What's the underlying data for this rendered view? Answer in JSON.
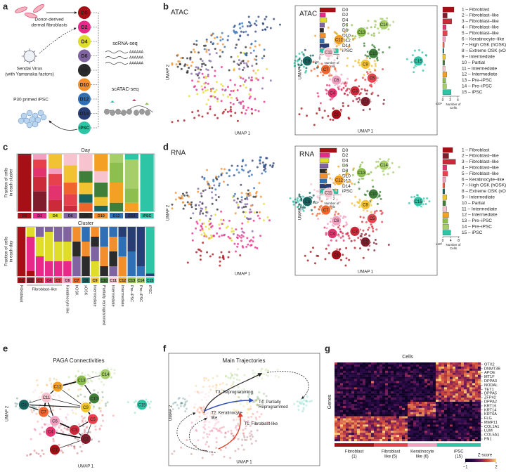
{
  "figure": {
    "panel_letters": [
      "a",
      "b",
      "c",
      "d",
      "e",
      "f",
      "g"
    ],
    "days": [
      "D0",
      "D2",
      "D4",
      "D6",
      "D8",
      "D10",
      "D12",
      "D14",
      "iPSC"
    ],
    "day_colors": [
      "#a50f15",
      "#e7298a",
      "#e0dd2a",
      "#8064a2",
      "#2b2b2b",
      "#f28e2b",
      "#2f6fb5",
      "#283d74",
      "#2ec4a6"
    ],
    "clusters": [
      "C1",
      "C2",
      "C3",
      "C4",
      "C5",
      "C6",
      "C7",
      "C8",
      "C9",
      "C10",
      "C11",
      "C12",
      "C13",
      "C14",
      "C15"
    ],
    "cluster_colors": [
      "#a50f15",
      "#7f1d2d",
      "#cb2a3a",
      "#e3336f",
      "#e8414e",
      "#f2a0c0",
      "#f0642e",
      "#17635f",
      "#f1c232",
      "#3f7f3a",
      "#f7c3cf",
      "#f4a024",
      "#8dbf4f",
      "#a6cf6a",
      "#2ec4a6"
    ],
    "cluster_legend": [
      "1 – Fibroblast",
      "2 – Fibroblast–like",
      "3 – Fibroblast–like",
      "4 – Fibroblast–like",
      "5 – Fibroblast–like",
      "6 – Keratinocyte–like",
      "7 – High OSK (hOSK)",
      "8 – Extreme OSK (xOSK)",
      "9 – Intermediate",
      "10 – Partial",
      "11 – Intermediate",
      "12 – Intermediate",
      "13 – Pre–iPSC",
      "14 – Pre–iPSC",
      "15 – iPSC"
    ],
    "umap_x_label": "UMAP 1",
    "umap_y_label": "UMAP 2",
    "number_of_cells_label": [
      "Number of",
      "Cells"
    ]
  },
  "panel_a": {
    "fibroblast_label": [
      "Donor-derived",
      "dermal fibroblasts"
    ],
    "virus_label": [
      "Sendai Virus",
      "(with Yamanaka factors)"
    ],
    "scrna_label": "scRNA-seq",
    "scatac_label": "scATAC-seq",
    "ipsc_label": "P30 primed iPSC",
    "poly_a": "AAAAAA"
  },
  "panel_b": {
    "left_title": "ATAC",
    "right_title": "ATAC",
    "day_counts": {
      "values": [
        3.6,
        1.3,
        1.6,
        1.1,
        0.9,
        1.3,
        1.0,
        2.1,
        4.2
      ],
      "xlim": [
        0,
        4.5
      ],
      "xticks": [
        0,
        2,
        4
      ],
      "scale_label": "x10⁴"
    },
    "cluster_counts": {
      "values": [
        3.0,
        1.2,
        2.4,
        0.9,
        1.2,
        0.7,
        0.4,
        0.3,
        0.7,
        0.5,
        0.6,
        1.1,
        0.8,
        1.0,
        2.2
      ],
      "xlim": [
        0,
        4.5
      ],
      "xticks": [
        0,
        2,
        4
      ],
      "scale_label": "x10⁴"
    }
  },
  "panel_c": {
    "day_chart": {
      "title": "Day",
      "y_label": [
        "Fraction of cells",
        "in each cluster"
      ],
      "ylim": [
        0,
        1
      ],
      "series": [
        {
          "values": [
            0.97,
            0,
            0,
            0,
            0,
            0,
            0,
            0,
            0
          ]
        },
        {
          "values": [
            0.03,
            0.35,
            0,
            0,
            0,
            0,
            0,
            0,
            0
          ]
        },
        {
          "values": [
            0,
            0.25,
            0.2,
            0.1,
            0,
            0,
            0,
            0,
            0
          ]
        },
        {
          "values": [
            0,
            0.15,
            0.25,
            0,
            0,
            0,
            0,
            0,
            0
          ]
        },
        {
          "values": [
            0,
            0.15,
            0.2,
            0.2,
            0,
            0,
            0,
            0,
            0
          ]
        },
        {
          "values": [
            0,
            0.1,
            0.1,
            0,
            0,
            0,
            0,
            0,
            0
          ]
        },
        {
          "values": [
            0,
            0,
            0,
            0.2,
            0.15,
            0,
            0,
            0,
            0
          ]
        },
        {
          "values": [
            0,
            0,
            0,
            0,
            0.15,
            0.1,
            0,
            0,
            0
          ]
        },
        {
          "values": [
            0,
            0,
            0.25,
            0.3,
            0.2,
            0.15,
            0,
            0,
            0
          ]
        },
        {
          "values": [
            0,
            0,
            0,
            0,
            0.2,
            0.25,
            0.15,
            0,
            0
          ]
        },
        {
          "values": [
            0,
            0,
            0,
            0.2,
            0.3,
            0.2,
            0,
            0,
            0
          ]
        },
        {
          "values": [
            0,
            0,
            0,
            0,
            0,
            0.3,
            0.35,
            0.15,
            0
          ]
        },
        {
          "values": [
            0,
            0,
            0,
            0,
            0,
            0,
            0.35,
            0.25,
            0
          ]
        },
        {
          "values": [
            0,
            0,
            0,
            0,
            0,
            0,
            0.15,
            0.5,
            0
          ]
        },
        {
          "values": [
            0,
            0,
            0,
            0,
            0,
            0,
            0,
            0.1,
            1
          ]
        }
      ]
    },
    "cluster_chart": {
      "title": "Cluster",
      "y_label": [
        "Fraction of cells",
        "in each day"
      ],
      "ylim": [
        0,
        1
      ],
      "series": [
        {
          "values": [
            1,
            0.1,
            0,
            0,
            0,
            0,
            0,
            0,
            0,
            0,
            0,
            0,
            0,
            0,
            0
          ]
        },
        {
          "values": [
            0,
            0.7,
            0.4,
            0.3,
            0.3,
            0.3,
            0,
            0,
            0,
            0,
            0,
            0,
            0,
            0,
            0
          ]
        },
        {
          "values": [
            0,
            0.2,
            0.4,
            0.6,
            0.4,
            0.4,
            0,
            0,
            0.3,
            0,
            0,
            0,
            0,
            0,
            0
          ]
        },
        {
          "values": [
            0,
            0,
            0.2,
            0.1,
            0.3,
            0.3,
            0.4,
            0,
            0.3,
            0,
            0.2,
            0,
            0,
            0,
            0
          ]
        },
        {
          "values": [
            0,
            0,
            0,
            0,
            0,
            0,
            0.3,
            0.4,
            0.2,
            0.2,
            0.3,
            0,
            0,
            0,
            0
          ]
        },
        {
          "values": [
            0,
            0,
            0,
            0,
            0,
            0,
            0.3,
            0.3,
            0.2,
            0.4,
            0.3,
            0.4,
            0,
            0,
            0
          ]
        },
        {
          "values": [
            0,
            0,
            0,
            0,
            0,
            0,
            0,
            0.3,
            0,
            0.4,
            0.2,
            0.4,
            0.5,
            0.2,
            0
          ]
        },
        {
          "values": [
            0,
            0,
            0,
            0,
            0,
            0,
            0,
            0,
            0,
            0,
            0,
            0.2,
            0.5,
            0.8,
            0.05
          ]
        },
        {
          "values": [
            0,
            0,
            0,
            0,
            0,
            0,
            0,
            0,
            0,
            0,
            0,
            0,
            0,
            0,
            0.95
          ]
        }
      ],
      "annotations": [
        "Fibroblast",
        "Fibroblast–like",
        "Keratinocyte like",
        "hOSK",
        "xOSK",
        "Intermediate",
        "Partially reprogrammed",
        "Intermediate",
        "Intermediate",
        "Pre–iPSC",
        "Pre–iPSC",
        "iPSC"
      ]
    }
  },
  "panel_d": {
    "left_title": "RNA",
    "right_title": "RNA",
    "day_counts": {
      "values": [
        2.4,
        1.4,
        1.3,
        1.2,
        1.0,
        1.1,
        1.0,
        1.6,
        2.6
      ],
      "xlim": [
        0,
        2.8
      ],
      "xticks": [
        0,
        1,
        2
      ],
      "scale_label": "x10⁴"
    },
    "cluster_counts": {
      "values": [
        5,
        3,
        6.5,
        2,
        2.5,
        1.5,
        1,
        1,
        2,
        1.5,
        2,
        3,
        2.5,
        3,
        4
      ],
      "xlim": [
        0,
        8.5
      ],
      "xticks": [
        0,
        4,
        8
      ],
      "scale_label": "x10³"
    }
  },
  "panel_e": {
    "title": "PAGA Connectivities"
  },
  "panel_f": {
    "title": "Main Trajectories",
    "trajectories": [
      [
        "T1: Fibroblast-like"
      ],
      [
        "T2: Keratinocyte-",
        "like"
      ],
      [
        "T3: Reprogramming"
      ],
      [
        "T4: Partially",
        "Reprogrammed"
      ]
    ]
  },
  "panel_g": {
    "title": "Cells",
    "y_label": "Genes",
    "genes": [
      "OTX2",
      "DNMT3B",
      "APOE",
      "MT1F",
      "DPPA3",
      "NODAL",
      "TET1",
      "DPPA5",
      "ZFP42",
      "DPPA2",
      "KRT16",
      "KRT14",
      "KRT6A",
      "FLG",
      "MMP11",
      "COL1A1",
      "LUM",
      "COL5A1",
      "FN1"
    ],
    "groups": [
      [
        "Fibroblast",
        "(1)"
      ],
      [
        "Fibroblast",
        "like (5)"
      ],
      [
        "Keratinocyte",
        "like (6)"
      ],
      [
        "iPSC",
        "(15)"
      ]
    ],
    "group_colors": [
      "#a50f15",
      "#e8414e",
      "#f2a0c0",
      "#2ec4a6"
    ],
    "colorbar_label": "Z-score",
    "zlim": [
      -1,
      2
    ],
    "colorbar_ticks": [
      {
        "value": -1,
        "label": "−1"
      },
      2
    ]
  }
}
